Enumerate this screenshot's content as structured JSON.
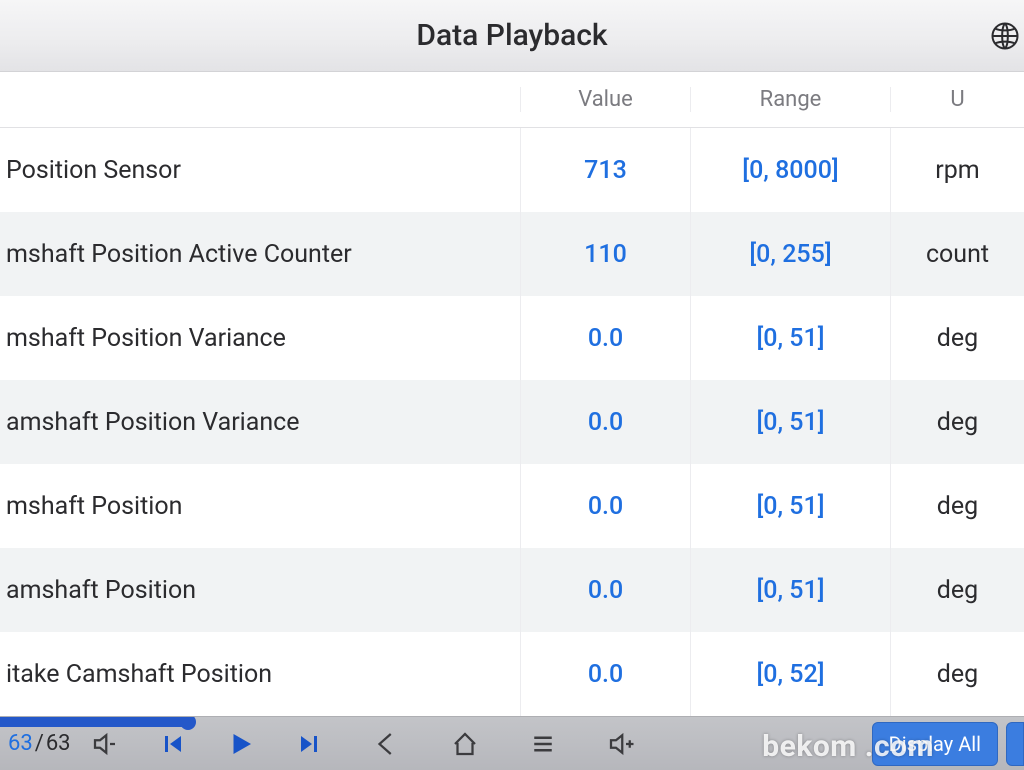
{
  "header": {
    "title": "Data Playback"
  },
  "table": {
    "columns": {
      "value": "Value",
      "range": "Range",
      "unit": "U"
    },
    "rows": [
      {
        "name": " Position Sensor",
        "value": "713",
        "range": "[0, 8000]",
        "unit": "rpm"
      },
      {
        "name": "mshaft Position Active Counter",
        "value": "110",
        "range": "[0, 255]",
        "unit": "count"
      },
      {
        "name": "mshaft Position Variance",
        "value": "0.0",
        "range": "[0, 51]",
        "unit": "deg"
      },
      {
        "name": "amshaft Position Variance",
        "value": "0.0",
        "range": "[0, 51]",
        "unit": "deg"
      },
      {
        "name": "mshaft Position",
        "value": "0.0",
        "range": "[0, 51]",
        "unit": "deg"
      },
      {
        "name": "amshaft Position",
        "value": "0.0",
        "range": "[0, 51]",
        "unit": "deg"
      },
      {
        "name": "itake Camshaft Position",
        "value": "0.0",
        "range": "[0, 52]",
        "unit": "deg"
      }
    ]
  },
  "playback": {
    "current_frame": "63",
    "total_frames": "63",
    "display_all_label": "Display All"
  },
  "colors": {
    "accent_blue": "#1f6fe0",
    "button_blue": "#3b7de0",
    "progress_blue": "#2458c9",
    "row_alt_bg": "#f1f3f4",
    "header_grad_top": "#f6f6f7",
    "header_grad_bot": "#e3e3e6",
    "footer_grad_top": "#c3c4c8",
    "footer_grad_bot": "#b6b7bc"
  },
  "watermark": "bekom    .com"
}
